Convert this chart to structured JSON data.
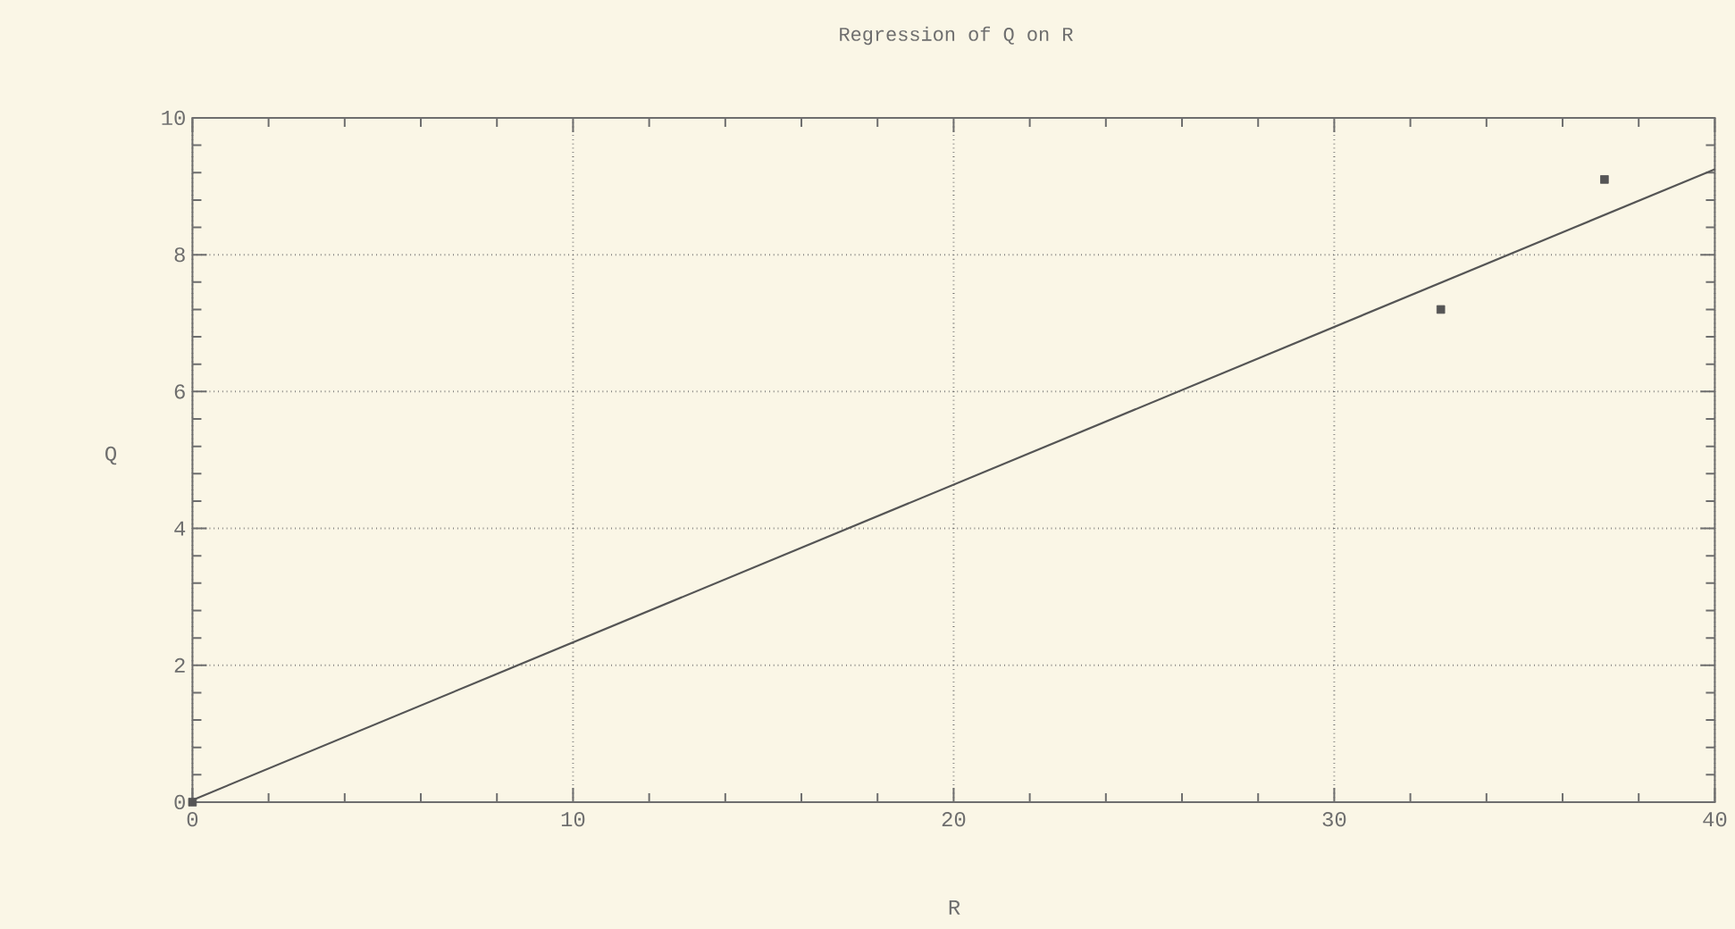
{
  "chart_data": {
    "type": "scatter",
    "title": "Regression of Q on R",
    "xlabel": "R",
    "ylabel": "Q",
    "xlim": [
      0,
      40
    ],
    "xticks": [
      0,
      10,
      20,
      30,
      40
    ],
    "ylim": [
      0,
      10
    ],
    "yticks": [
      0,
      2,
      4,
      6,
      8,
      10
    ],
    "grid": true,
    "marker": "square",
    "series": [
      {
        "type": "scatter",
        "x": [
          0,
          32.8,
          37.1
        ],
        "values": [
          0,
          7.2,
          9.1
        ],
        "color": "#555555"
      },
      {
        "type": "line",
        "x": [
          0,
          40
        ],
        "values": [
          0.03,
          9.25
        ],
        "color": "#555555",
        "marker": "none"
      }
    ]
  }
}
